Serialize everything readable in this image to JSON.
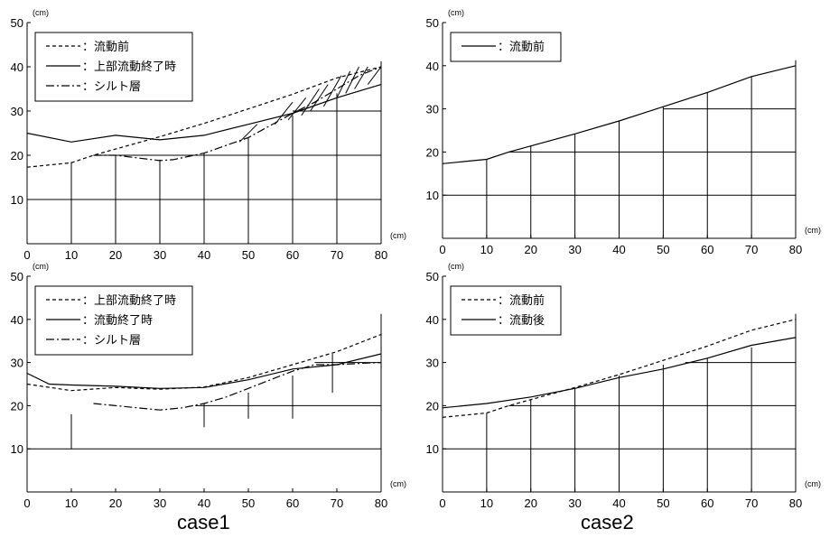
{
  "figure": {
    "case_labels": [
      "case1",
      "case2"
    ]
  },
  "chart_data": [
    {
      "type": "line",
      "panel": "top-left",
      "x_unit": "(cm)",
      "y_unit": "(cm)",
      "xlim": [
        0,
        80
      ],
      "ylim": [
        0,
        50
      ],
      "xticks": [
        0,
        10,
        20,
        30,
        40,
        50,
        60,
        70,
        80
      ],
      "yticks": [
        10,
        20,
        30,
        40,
        50
      ],
      "legend_position": "top-left",
      "grid_lines_h": [
        {
          "y": 10,
          "x": [
            0,
            80
          ]
        },
        {
          "y": 20,
          "x": [
            15,
            80
          ]
        },
        {
          "y": 30,
          "x": [
            60,
            80
          ]
        }
      ],
      "grid_lines_v": [
        {
          "x": 10,
          "y": [
            0,
            18.5
          ]
        },
        {
          "x": 20,
          "y": [
            0,
            20
          ]
        },
        {
          "x": 30,
          "y": [
            0,
            19
          ]
        },
        {
          "x": 40,
          "y": [
            0,
            20.5
          ]
        },
        {
          "x": 50,
          "y": [
            0,
            24
          ]
        },
        {
          "x": 60,
          "y": [
            0,
            29
          ]
        },
        {
          "x": 70,
          "y": [
            0,
            34
          ]
        }
      ],
      "hatch_segments": [
        [
          [
            48,
            23
          ],
          [
            52,
            27
          ]
        ],
        [
          [
            56,
            27
          ],
          [
            60,
            32
          ]
        ],
        [
          [
            59,
            28
          ],
          [
            63,
            33
          ]
        ],
        [
          [
            62,
            29
          ],
          [
            66,
            35
          ]
        ],
        [
          [
            64,
            30
          ],
          [
            68,
            36
          ]
        ],
        [
          [
            67,
            31
          ],
          [
            71,
            38
          ]
        ],
        [
          [
            70,
            33
          ],
          [
            73,
            39
          ]
        ],
        [
          [
            72,
            34
          ],
          [
            75,
            40
          ]
        ],
        [
          [
            74,
            35
          ],
          [
            77,
            40
          ]
        ],
        [
          [
            77,
            36
          ],
          [
            80,
            40
          ]
        ]
      ],
      "series": [
        {
          "name": "流動前",
          "style": "dashed",
          "x": [
            0,
            10,
            15,
            20,
            30,
            40,
            50,
            60,
            70,
            80
          ],
          "y": [
            17.3,
            18.3,
            20,
            21.4,
            24.2,
            27.2,
            30.5,
            33.8,
            37.5,
            40
          ]
        },
        {
          "name": "上部流動終了時",
          "style": "solid",
          "x": [
            0,
            10,
            20,
            30,
            40,
            50,
            60,
            70,
            80
          ],
          "y": [
            25,
            23,
            24.5,
            23.5,
            24.5,
            27,
            29.5,
            33,
            36
          ]
        },
        {
          "name": "シルト層",
          "style": "dashdot",
          "x": [
            15,
            20,
            30,
            33,
            40,
            50,
            60,
            65,
            70,
            75,
            80
          ],
          "y": [
            20,
            20,
            18.8,
            19,
            20.5,
            24,
            29.5,
            32,
            35,
            38,
            40
          ]
        }
      ]
    },
    {
      "type": "line",
      "panel": "top-right",
      "x_unit": "(cm)",
      "y_unit": "(cm)",
      "xlim": [
        0,
        80
      ],
      "ylim": [
        0,
        50
      ],
      "xticks": [
        0,
        10,
        20,
        30,
        40,
        50,
        60,
        70,
        80
      ],
      "yticks": [
        10,
        20,
        30,
        40,
        50
      ],
      "legend_position": "top-left",
      "grid_lines_h": [
        {
          "y": 10,
          "x": [
            0,
            80
          ]
        },
        {
          "y": 20,
          "x": [
            15,
            80
          ]
        },
        {
          "y": 30,
          "x": [
            50,
            80
          ]
        }
      ],
      "grid_lines_v": [
        {
          "x": 10,
          "y": [
            0,
            18.3
          ]
        },
        {
          "x": 20,
          "y": [
            0,
            21.4
          ]
        },
        {
          "x": 30,
          "y": [
            0,
            24.2
          ]
        },
        {
          "x": 40,
          "y": [
            0,
            27.2
          ]
        },
        {
          "x": 50,
          "y": [
            0,
            30.5
          ]
        },
        {
          "x": 60,
          "y": [
            0,
            33.8
          ]
        },
        {
          "x": 70,
          "y": [
            0,
            37.5
          ]
        }
      ],
      "series": [
        {
          "name": "流動前",
          "style": "solid",
          "x": [
            0,
            10,
            15,
            20,
            30,
            40,
            50,
            60,
            70,
            80
          ],
          "y": [
            17.3,
            18.3,
            20,
            21.4,
            24.2,
            27.2,
            30.5,
            33.8,
            37.5,
            40
          ]
        }
      ]
    },
    {
      "type": "line",
      "panel": "bottom-left",
      "x_unit": "(cm)",
      "y_unit": "(cm)",
      "xlim": [
        0,
        80
      ],
      "ylim": [
        0,
        50
      ],
      "xticks": [
        0,
        10,
        20,
        30,
        40,
        50,
        60,
        70,
        80
      ],
      "yticks": [
        10,
        20,
        30,
        40,
        50
      ],
      "legend_position": "top-left",
      "grid_lines_h": [
        {
          "y": 10,
          "x": [
            0,
            80
          ]
        },
        {
          "y": 20,
          "x": [
            38,
            80
          ]
        },
        {
          "y": 30,
          "x": [
            65,
            80
          ]
        }
      ],
      "grid_lines_v": [
        {
          "x": 10,
          "y": [
            10,
            18
          ]
        },
        {
          "x": 40,
          "y": [
            15,
            20.5
          ]
        },
        {
          "x": 50,
          "y": [
            17,
            23
          ]
        },
        {
          "x": 60,
          "y": [
            17,
            27
          ]
        },
        {
          "x": 69,
          "y": [
            23,
            32
          ]
        }
      ],
      "series": [
        {
          "name": "上部流動終了時",
          "style": "dashed",
          "x": [
            0,
            10,
            20,
            30,
            40,
            50,
            60,
            70,
            80
          ],
          "y": [
            25,
            23.5,
            24.2,
            23.8,
            24.3,
            26.5,
            29.5,
            32.5,
            36.5
          ]
        },
        {
          "name": "流動終了時",
          "style": "solid",
          "x": [
            0,
            5,
            10,
            20,
            30,
            40,
            50,
            60,
            70,
            80
          ],
          "y": [
            27.5,
            25,
            24.8,
            24.5,
            24,
            24.2,
            26,
            28.5,
            29.5,
            32
          ]
        },
        {
          "name": "シルト層",
          "style": "dashdot",
          "x": [
            15,
            20,
            25,
            30,
            35,
            40,
            45,
            50,
            55,
            60,
            65,
            70,
            75,
            80
          ],
          "y": [
            20.5,
            20,
            19.5,
            19,
            19.5,
            20.5,
            22,
            24,
            26,
            28,
            29.5,
            29.5,
            29.8,
            30
          ]
        }
      ]
    },
    {
      "type": "line",
      "panel": "bottom-right",
      "x_unit": "(cm)",
      "y_unit": "(cm)",
      "xlim": [
        0,
        80
      ],
      "ylim": [
        0,
        50
      ],
      "xticks": [
        0,
        10,
        20,
        30,
        40,
        50,
        60,
        70,
        80
      ],
      "yticks": [
        10,
        20,
        30,
        40,
        50
      ],
      "legend_position": "top-left",
      "grid_lines_h": [
        {
          "y": 10,
          "x": [
            0,
            80
          ]
        },
        {
          "y": 20,
          "x": [
            15,
            80
          ]
        },
        {
          "y": 30,
          "x": [
            55,
            80
          ]
        }
      ],
      "grid_lines_v": [
        {
          "x": 10,
          "y": [
            0,
            18.3
          ]
        },
        {
          "x": 20,
          "y": [
            0,
            21.4
          ]
        },
        {
          "x": 30,
          "y": [
            0,
            24
          ]
        },
        {
          "x": 40,
          "y": [
            0,
            27
          ]
        },
        {
          "x": 50,
          "y": [
            0,
            29.5
          ]
        },
        {
          "x": 60,
          "y": [
            0,
            31
          ]
        },
        {
          "x": 70,
          "y": [
            0,
            33.5
          ]
        }
      ],
      "series": [
        {
          "name": "流動前",
          "style": "dashed",
          "x": [
            0,
            10,
            15,
            20,
            30,
            40,
            50,
            60,
            70,
            80
          ],
          "y": [
            17.3,
            18.3,
            20,
            21.4,
            24.2,
            27.2,
            30.5,
            33.8,
            37.5,
            40
          ]
        },
        {
          "name": "流動後",
          "style": "solid",
          "x": [
            0,
            10,
            20,
            30,
            40,
            50,
            60,
            70,
            80
          ],
          "y": [
            19.5,
            20.5,
            22,
            24,
            26.5,
            28.5,
            31,
            34,
            35.8
          ]
        }
      ]
    }
  ]
}
